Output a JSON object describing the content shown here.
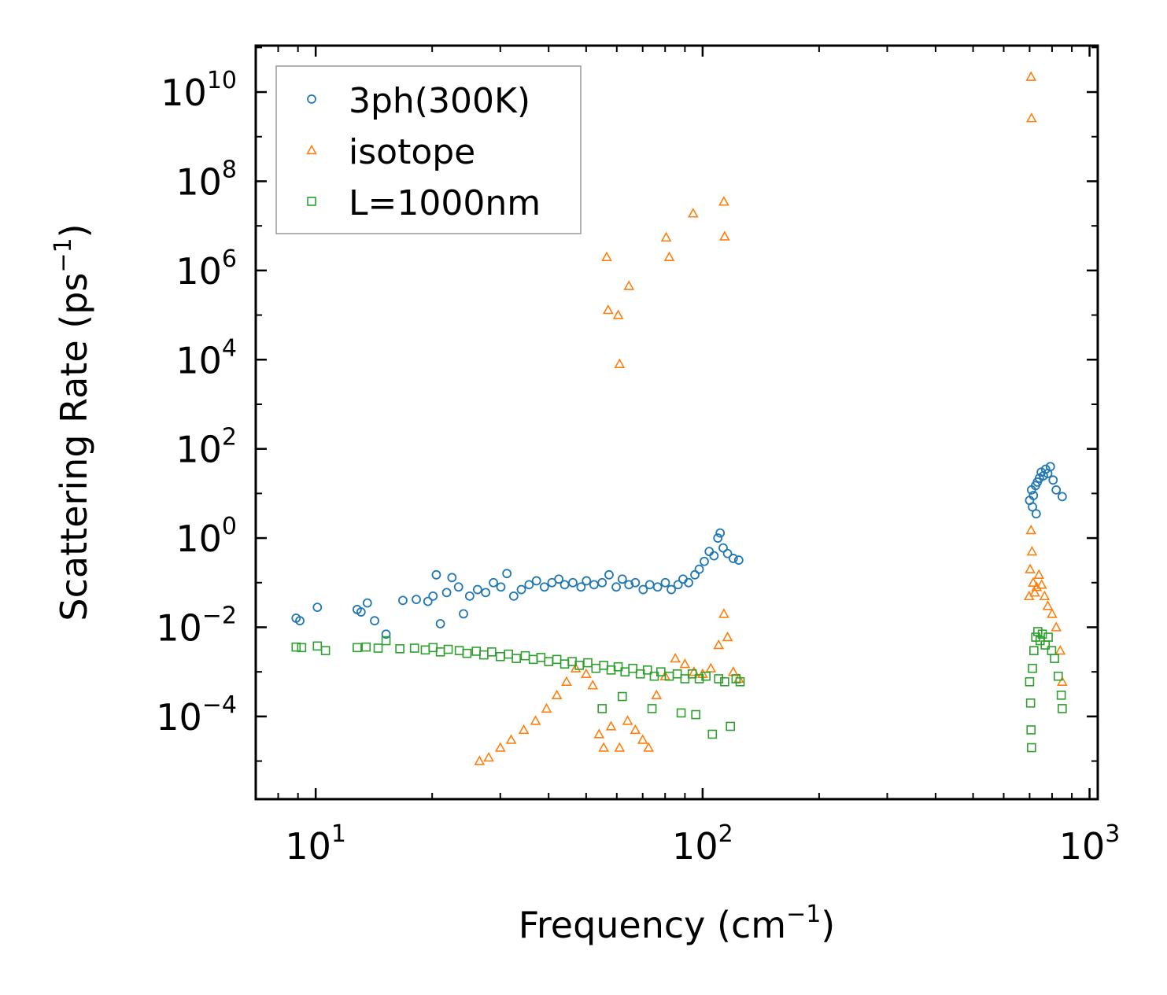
{
  "chart_data": {
    "type": "scatter",
    "title": "",
    "xlabel": "Frequency (cm",
    "xlabel_sup": "−1",
    "xlabel_tail": ")",
    "ylabel": "Scattering Rate (ps",
    "ylabel_sup": "−1",
    "ylabel_tail": ")",
    "xscale": "log",
    "yscale": "log",
    "xlim": [
      7,
      1050
    ],
    "ylim": [
      1.4e-06,
      110000000000.0
    ],
    "x_ticks": [
      {
        "value": 10,
        "base": "10",
        "exp": "1"
      },
      {
        "value": 100,
        "base": "10",
        "exp": "2"
      },
      {
        "value": 1000,
        "base": "10",
        "exp": "3"
      }
    ],
    "y_ticks": [
      {
        "value": 0.0001,
        "base": "10",
        "exp": "−4"
      },
      {
        "value": 0.01,
        "base": "10",
        "exp": "−2"
      },
      {
        "value": 1,
        "base": "10",
        "exp": "0"
      },
      {
        "value": 100,
        "base": "10",
        "exp": "2"
      },
      {
        "value": 10000,
        "base": "10",
        "exp": "4"
      },
      {
        "value": 1000000,
        "base": "10",
        "exp": "6"
      },
      {
        "value": 100000000,
        "base": "10",
        "exp": "8"
      },
      {
        "value": 10000000000,
        "base": "10",
        "exp": "10"
      }
    ],
    "legend_position": "top-left",
    "series": [
      {
        "name": "3ph(300K)",
        "marker": "circle",
        "color": "#1f77b4",
        "points": [
          [
            8.9,
            0.016
          ],
          [
            9.1,
            0.014
          ],
          [
            10.1,
            0.028
          ],
          [
            12.8,
            0.025
          ],
          [
            13.1,
            0.022
          ],
          [
            13.6,
            0.035
          ],
          [
            14.2,
            0.014
          ],
          [
            15.2,
            0.007
          ],
          [
            16.8,
            0.04
          ],
          [
            18.2,
            0.042
          ],
          [
            19.5,
            0.038
          ],
          [
            20.1,
            0.05
          ],
          [
            20.5,
            0.15
          ],
          [
            21.0,
            0.012
          ],
          [
            21.8,
            0.06
          ],
          [
            22.5,
            0.13
          ],
          [
            23.4,
            0.08
          ],
          [
            24.1,
            0.02
          ],
          [
            25.0,
            0.05
          ],
          [
            26.2,
            0.07
          ],
          [
            27.5,
            0.06
          ],
          [
            28.8,
            0.1
          ],
          [
            30.1,
            0.08
          ],
          [
            31.2,
            0.16
          ],
          [
            32.5,
            0.05
          ],
          [
            34.0,
            0.07
          ],
          [
            35.6,
            0.09
          ],
          [
            37.2,
            0.11
          ],
          [
            39.0,
            0.08
          ],
          [
            40.8,
            0.1
          ],
          [
            42.5,
            0.12
          ],
          [
            44.0,
            0.09
          ],
          [
            46.2,
            0.1
          ],
          [
            48.5,
            0.08
          ],
          [
            50.1,
            0.11
          ],
          [
            52.4,
            0.09
          ],
          [
            55.0,
            0.1
          ],
          [
            57.3,
            0.15
          ],
          [
            59.8,
            0.08
          ],
          [
            62.0,
            0.12
          ],
          [
            64.5,
            0.09
          ],
          [
            67.0,
            0.1
          ],
          [
            70.2,
            0.07
          ],
          [
            73.0,
            0.09
          ],
          [
            76.5,
            0.08
          ],
          [
            80.1,
            0.1
          ],
          [
            83.0,
            0.07
          ],
          [
            86.4,
            0.09
          ],
          [
            89.0,
            0.12
          ],
          [
            92.0,
            0.1
          ],
          [
            95.5,
            0.15
          ],
          [
            98.0,
            0.2
          ],
          [
            101.0,
            0.3
          ],
          [
            104.0,
            0.5
          ],
          [
            107.0,
            0.4
          ],
          [
            109.5,
            1.0
          ],
          [
            111.0,
            1.3
          ],
          [
            113.0,
            0.6
          ],
          [
            116.0,
            0.45
          ],
          [
            120.0,
            0.35
          ],
          [
            124.0,
            0.32
          ],
          [
            700.0,
            7.0
          ],
          [
            708.0,
            12.0
          ],
          [
            716.0,
            9.0
          ],
          [
            725.0,
            15.0
          ],
          [
            733.0,
            18.0
          ],
          [
            742.0,
            22.0
          ],
          [
            750.0,
            30.0
          ],
          [
            760.0,
            25.0
          ],
          [
            770.0,
            35.0
          ],
          [
            780.0,
            28.0
          ],
          [
            792.0,
            40.0
          ],
          [
            805.0,
            20.0
          ],
          [
            820.0,
            12.0
          ],
          [
            850.0,
            8.5
          ],
          [
            712.0,
            5.0
          ],
          [
            728.0,
            3.5
          ]
        ]
      },
      {
        "name": "isotope",
        "marker": "triangle",
        "color": "#ff7f0e",
        "points": [
          [
            56.5,
            2000000
          ],
          [
            57.0,
            130000
          ],
          [
            60.5,
            100000
          ],
          [
            61.0,
            8000
          ],
          [
            64.5,
            450000
          ],
          [
            80.5,
            5500000
          ],
          [
            82.0,
            2000000
          ],
          [
            94.5,
            19000000
          ],
          [
            113.5,
            35000000
          ],
          [
            114.0,
            5800000
          ],
          [
            706.0,
            22000000000
          ],
          [
            708.0,
            2600000000
          ],
          [
            26.5,
            1e-05
          ],
          [
            28.0,
            1.2e-05
          ],
          [
            30.0,
            2e-05
          ],
          [
            32.0,
            3e-05
          ],
          [
            34.5,
            5e-05
          ],
          [
            37.0,
            8e-05
          ],
          [
            39.5,
            0.00015
          ],
          [
            42.0,
            0.0003
          ],
          [
            44.5,
            0.0006
          ],
          [
            47.0,
            0.0012
          ],
          [
            50.0,
            0.0009
          ],
          [
            52.0,
            0.0005
          ],
          [
            54.0,
            4e-05
          ],
          [
            55.5,
            2e-05
          ],
          [
            58.0,
            6e-05
          ],
          [
            61.0,
            2e-05
          ],
          [
            64.0,
            8e-05
          ],
          [
            67.0,
            5e-05
          ],
          [
            70.0,
            3e-05
          ],
          [
            72.5,
            2e-05
          ],
          [
            76.0,
            0.0003
          ],
          [
            80.0,
            0.0008
          ],
          [
            85.0,
            0.002
          ],
          [
            90.0,
            0.0015
          ],
          [
            95.0,
            0.001
          ],
          [
            100.0,
            0.0009
          ],
          [
            105.0,
            0.0012
          ],
          [
            110.0,
            0.004
          ],
          [
            113.5,
            0.02
          ],
          [
            116.0,
            0.006
          ],
          [
            120.0,
            0.001
          ],
          [
            124.0,
            0.0007
          ],
          [
            698.0,
            0.05
          ],
          [
            702.0,
            0.2
          ],
          [
            706.0,
            1.5
          ],
          [
            710.0,
            0.5
          ],
          [
            715.0,
            0.1
          ],
          [
            722.0,
            0.06
          ],
          [
            730.0,
            0.08
          ],
          [
            740.0,
            0.15
          ],
          [
            752.0,
            0.09
          ],
          [
            765.0,
            0.05
          ],
          [
            780.0,
            0.03
          ],
          [
            800.0,
            0.02
          ],
          [
            820.0,
            0.01
          ],
          [
            840.0,
            0.003
          ],
          [
            850.0,
            0.0006
          ]
        ]
      },
      {
        "name": "L=1000nm",
        "marker": "square",
        "color": "#2ca02c",
        "points": [
          [
            8.9,
            0.0036
          ],
          [
            9.2,
            0.0035
          ],
          [
            10.1,
            0.0038
          ],
          [
            10.6,
            0.003
          ],
          [
            12.8,
            0.0035
          ],
          [
            13.5,
            0.0036
          ],
          [
            14.5,
            0.0034
          ],
          [
            15.2,
            0.005
          ],
          [
            16.5,
            0.0033
          ],
          [
            18.0,
            0.0034
          ],
          [
            19.2,
            0.0031
          ],
          [
            20.1,
            0.0035
          ],
          [
            21.0,
            0.0028
          ],
          [
            22.0,
            0.0032
          ],
          [
            23.5,
            0.003
          ],
          [
            24.6,
            0.0026
          ],
          [
            26.0,
            0.0029
          ],
          [
            27.2,
            0.0024
          ],
          [
            28.5,
            0.0028
          ],
          [
            30.0,
            0.0022
          ],
          [
            31.5,
            0.0025
          ],
          [
            33.0,
            0.002
          ],
          [
            34.8,
            0.0023
          ],
          [
            36.5,
            0.0019
          ],
          [
            38.2,
            0.0021
          ],
          [
            40.0,
            0.0017
          ],
          [
            42.0,
            0.0019
          ],
          [
            44.0,
            0.0015
          ],
          [
            46.0,
            0.0017
          ],
          [
            48.0,
            0.0014
          ],
          [
            50.5,
            0.0016
          ],
          [
            53.0,
            0.0012
          ],
          [
            55.5,
            0.0014
          ],
          [
            58.0,
            0.0011
          ],
          [
            60.5,
            0.0013
          ],
          [
            63.0,
            0.001
          ],
          [
            66.0,
            0.0012
          ],
          [
            69.0,
            0.0009
          ],
          [
            72.0,
            0.0011
          ],
          [
            75.0,
            0.0008
          ],
          [
            78.0,
            0.001
          ],
          [
            82.0,
            0.0008
          ],
          [
            86.0,
            0.0009
          ],
          [
            90.0,
            0.0007
          ],
          [
            94.0,
            0.0009
          ],
          [
            98.0,
            0.0007
          ],
          [
            102.0,
            0.0008
          ],
          [
            106.0,
            4e-05
          ],
          [
            110.0,
            0.0007
          ],
          [
            114.0,
            0.0006
          ],
          [
            118.0,
            6e-05
          ],
          [
            122.0,
            0.0007
          ],
          [
            125.0,
            0.0006
          ],
          [
            55.0,
            0.00015
          ],
          [
            62.0,
            0.00028
          ],
          [
            74.0,
            0.00015
          ],
          [
            88.0,
            0.00012
          ],
          [
            96.0,
            0.00011
          ],
          [
            700.0,
            0.0006
          ],
          [
            704.0,
            0.0002
          ],
          [
            708.0,
            2e-05
          ],
          [
            712.0,
            0.0012
          ],
          [
            718.0,
            0.003
          ],
          [
            726.0,
            0.006
          ],
          [
            735.0,
            0.008
          ],
          [
            745.0,
            0.005
          ],
          [
            755.0,
            0.007
          ],
          [
            768.0,
            0.004
          ],
          [
            782.0,
            0.006
          ],
          [
            798.0,
            0.003
          ],
          [
            812.0,
            0.002
          ],
          [
            830.0,
            0.0008
          ],
          [
            845.0,
            0.0003
          ],
          [
            850.0,
            0.00015
          ],
          [
            706.0,
            5e-05
          ]
        ]
      }
    ]
  }
}
